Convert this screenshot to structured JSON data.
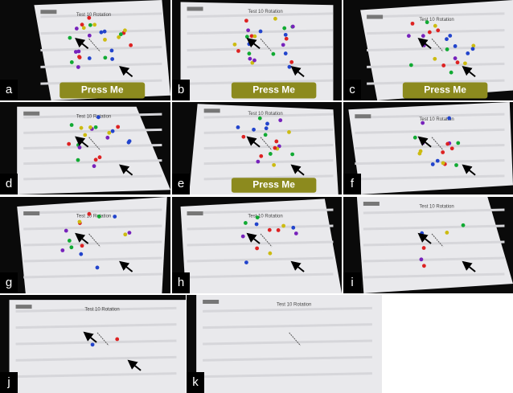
{
  "panels": [
    {
      "label": "a",
      "title": "Test 10 Rotation",
      "button": "Press Me"
    },
    {
      "label": "b",
      "title": "Test 10 Rotation",
      "button": "Press Me"
    },
    {
      "label": "c",
      "title": "Test 10 Rotation",
      "button": "Press Me"
    },
    {
      "label": "d",
      "title": "Test 10 Rotation"
    },
    {
      "label": "e",
      "title": "Test 10 Rotation",
      "button": "Press Me"
    },
    {
      "label": "f",
      "title": "Test 10 Rotation"
    },
    {
      "label": "g",
      "title": "Test 10 Rotation"
    },
    {
      "label": "h",
      "title": "Test 10 Rotation"
    },
    {
      "label": "i",
      "title": "Test 10 Rotation"
    },
    {
      "label": "j",
      "title": "Test 10 Rotation"
    },
    {
      "label": "k",
      "title": "Test 10 Rotation"
    }
  ]
}
